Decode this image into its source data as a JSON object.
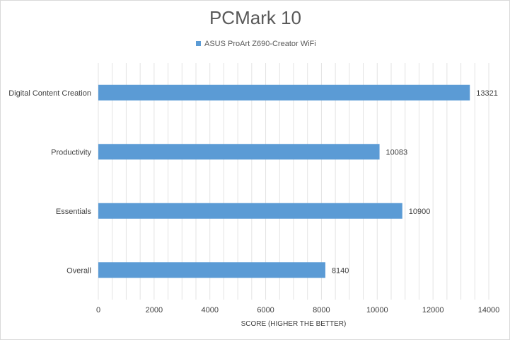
{
  "chart_data": {
    "type": "bar",
    "orientation": "horizontal",
    "title": "PCMark 10",
    "categories": [
      "Digital Content Creation",
      "Productivity",
      "Essentials",
      "Overall"
    ],
    "series": [
      {
        "name": "ASUS ProArt Z690-Creator WiFi",
        "values": [
          13321,
          10083,
          10900,
          8140
        ]
      }
    ],
    "xlabel": "SCORE (HIGHER THE BETTER)",
    "ylabel": "",
    "xlim": [
      0,
      14000
    ],
    "x_ticks": [
      "0",
      "2000",
      "4000",
      "6000",
      "8000",
      "10000",
      "12000",
      "14000"
    ],
    "data_labels": [
      "13321",
      "10083",
      "10900",
      "8140"
    ],
    "grid": true,
    "legend_position": "top-center",
    "colors": {
      "bar": "#5b9bd5",
      "grid": "#e3e3e3",
      "text": "#595959"
    }
  }
}
